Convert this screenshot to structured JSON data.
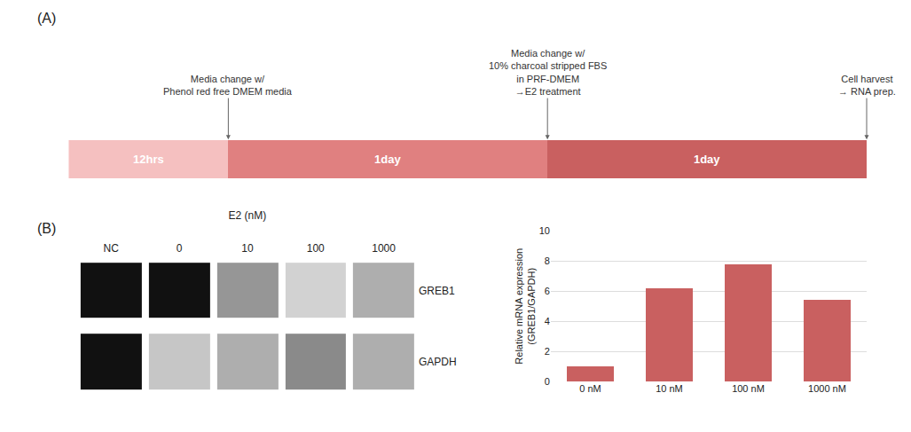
{
  "chart_data": [
    {
      "type": "bar",
      "title": "(A)",
      "orientation": "horizontal",
      "stacked": true,
      "tick_labels": false,
      "series": [
        {
          "name": "12hrs",
          "color": "#f5c0c0",
          "values": [
            1
          ]
        },
        {
          "name": "1day",
          "color": "#e08080",
          "values": [
            2
          ]
        },
        {
          "name": "1day",
          "color": "#c96060",
          "values": [
            2
          ]
        }
      ],
      "xlim": [
        0,
        5
      ],
      "annotations": [
        "Media change w/\nPhenol red free DMEM media",
        "Media change w/\n10% charcoal stripped FBS\nin PRF-DMEM\n→E2 treatment",
        "Cell harvest\n→ RNA prep."
      ]
    },
    {
      "type": "heatmap",
      "title": "(B)",
      "xlabel": "E2 (nM)",
      "categories": [
        "NC",
        "0",
        "10",
        "100",
        "1000"
      ],
      "series": [
        {
          "name": "GREB1",
          "values": [
            0.0,
            0.0,
            0.55,
            0.8,
            0.65
          ]
        },
        {
          "name": "GAPDH",
          "values": [
            0.0,
            0.75,
            0.65,
            0.5,
            0.65
          ]
        }
      ]
    },
    {
      "type": "bar",
      "categories": [
        "0 nM",
        "10 nM",
        "100 nM",
        "1000 nM"
      ],
      "values": [
        1.0,
        6.2,
        7.8,
        5.4
      ],
      "color": "#c96060",
      "ylim": [
        0,
        10
      ],
      "yticks": [
        0,
        2,
        4,
        6,
        8,
        10
      ],
      "ylabel": "Relative mRNA expression\n(GREB1/GAPDH)",
      "grid": true
    }
  ]
}
